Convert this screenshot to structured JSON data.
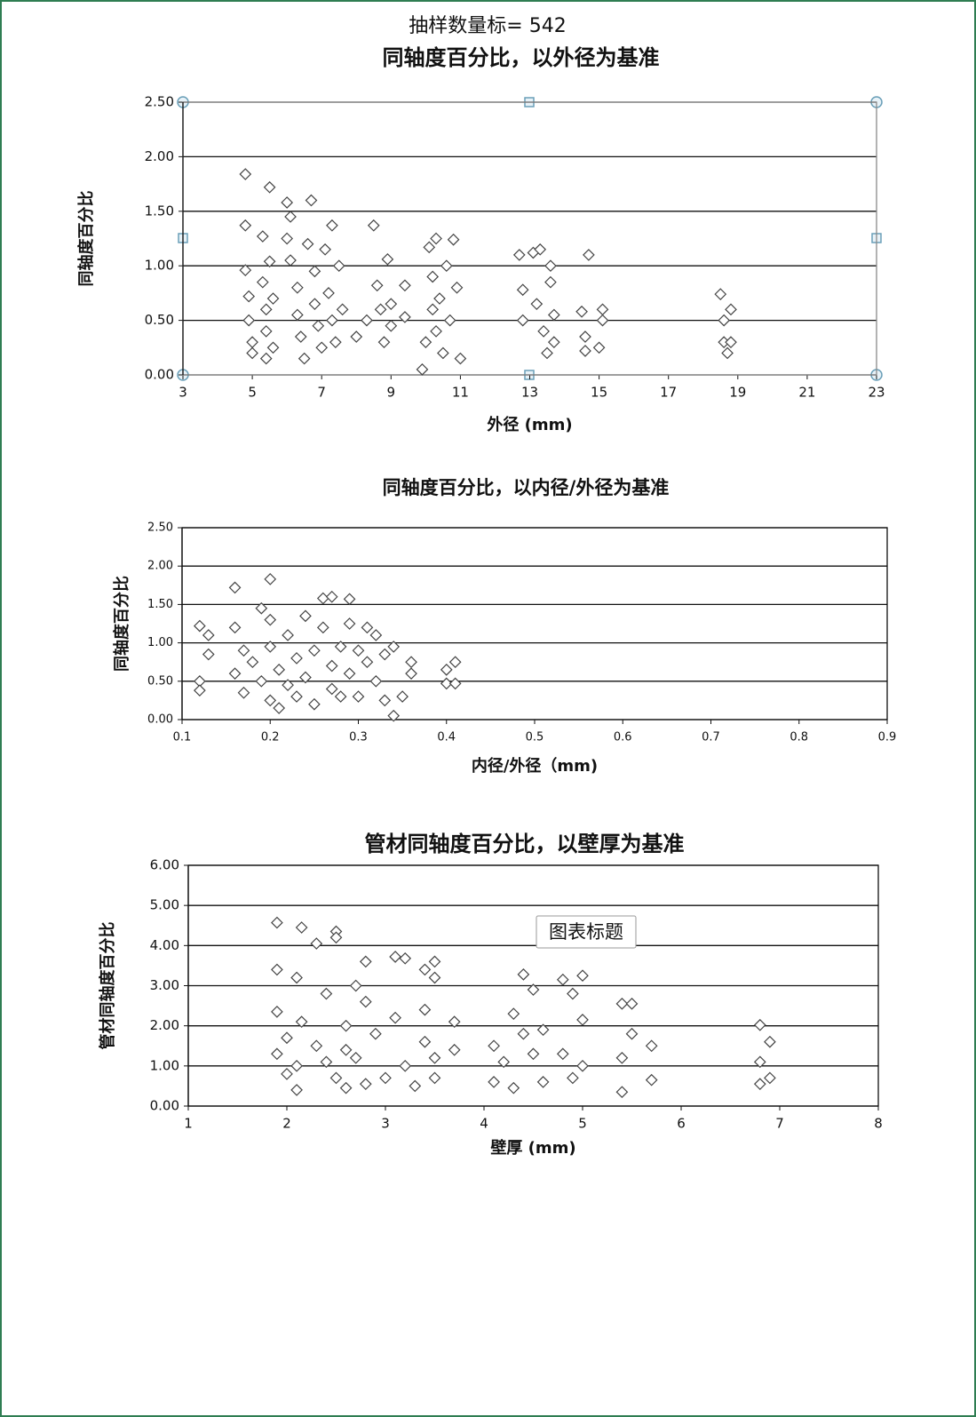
{
  "header": {
    "sample_label": "抽样数量标= 542"
  },
  "chart_data": [
    {
      "type": "scatter",
      "title": "同轴度百分比，以外径为基准",
      "x_label": "外径 (mm)",
      "y_label": "同轴度百分比",
      "color": "#444444",
      "grid": true,
      "xlim": [
        3,
        23
      ],
      "xticks": [
        3,
        5,
        7,
        9,
        11,
        13,
        15,
        17,
        19,
        21,
        23
      ],
      "ylim": [
        0,
        2.5
      ],
      "yticks": [
        {
          "value": 0,
          "label": "0.00"
        },
        {
          "value": 0.5,
          "label": "0.50"
        },
        {
          "value": 1,
          "label": "1.00"
        },
        {
          "value": 1.5,
          "label": "1.50"
        },
        {
          "value": 2,
          "label": "2.00"
        },
        {
          "value": 2.5,
          "label": "2.50"
        }
      ],
      "x": [
        4.8,
        4.8,
        4.8,
        4.9,
        4.9,
        5.0,
        5.0,
        5.3,
        5.3,
        5.4,
        5.4,
        5.4,
        5.5,
        5.5,
        5.6,
        5.6,
        6.0,
        6.1,
        6.0,
        6.1,
        6.3,
        6.3,
        6.4,
        6.5,
        6.6,
        6.7,
        6.8,
        6.8,
        6.9,
        7.0,
        7.1,
        7.2,
        7.3,
        7.3,
        7.4,
        7.5,
        7.6,
        8.0,
        8.3,
        8.5,
        8.6,
        8.7,
        8.8,
        8.9,
        9.0,
        9.0,
        9.4,
        9.4,
        9.9,
        10.0,
        10.1,
        10.2,
        10.2,
        10.3,
        10.3,
        10.4,
        10.5,
        10.6,
        10.7,
        10.8,
        10.9,
        11.0,
        12.7,
        12.8,
        12.8,
        13.1,
        13.2,
        13.3,
        13.4,
        13.5,
        13.6,
        13.6,
        13.7,
        13.7,
        14.5,
        14.6,
        14.6,
        14.7,
        15.0,
        15.1,
        15.1,
        18.5,
        18.6,
        18.6,
        18.7,
        18.8,
        18.8
      ],
      "values": [
        1.84,
        1.37,
        0.96,
        0.72,
        0.5,
        0.3,
        0.2,
        1.27,
        0.85,
        0.6,
        0.4,
        0.15,
        1.72,
        1.04,
        0.7,
        0.25,
        1.58,
        1.45,
        1.25,
        1.05,
        0.8,
        0.55,
        0.35,
        0.15,
        1.2,
        1.6,
        0.95,
        0.65,
        0.45,
        0.25,
        1.15,
        0.75,
        1.37,
        0.5,
        0.3,
        1.0,
        0.6,
        0.35,
        0.5,
        1.37,
        0.82,
        0.6,
        0.3,
        1.06,
        0.65,
        0.45,
        0.82,
        0.53,
        0.05,
        0.3,
        1.17,
        0.9,
        0.6,
        1.25,
        0.4,
        0.7,
        0.2,
        1.0,
        0.5,
        1.24,
        0.8,
        0.15,
        1.1,
        0.78,
        0.5,
        1.12,
        0.65,
        1.15,
        0.4,
        0.2,
        1.0,
        0.85,
        0.3,
        0.55,
        0.58,
        0.35,
        0.22,
        1.1,
        0.25,
        0.6,
        0.5,
        0.74,
        0.5,
        0.3,
        0.2,
        0.6,
        0.3
      ]
    },
    {
      "type": "scatter",
      "title": "同轴度百分比，以内径/外径为基准",
      "x_label": "内径/外径（mm)",
      "y_label": "同轴度百分比",
      "color": "#444444",
      "grid": true,
      "xlim": [
        0.1,
        0.9
      ],
      "xticks": [
        0.1,
        0.2,
        0.3,
        0.4,
        0.5,
        0.6,
        0.7,
        0.8,
        0.9
      ],
      "ylim": [
        0,
        2.5
      ],
      "yticks": [
        {
          "value": 0,
          "label": "0.00"
        },
        {
          "value": 0.5,
          "label": "0.50"
        },
        {
          "value": 1,
          "label": "1.00"
        },
        {
          "value": 1.5,
          "label": "1.50"
        },
        {
          "value": 2,
          "label": "2.00"
        },
        {
          "value": 2.5,
          "label": "2.50"
        }
      ],
      "x": [
        0.12,
        0.12,
        0.13,
        0.13,
        0.12,
        0.16,
        0.16,
        0.16,
        0.17,
        0.17,
        0.18,
        0.19,
        0.19,
        0.2,
        0.2,
        0.2,
        0.2,
        0.21,
        0.21,
        0.22,
        0.22,
        0.23,
        0.23,
        0.24,
        0.24,
        0.25,
        0.25,
        0.26,
        0.26,
        0.27,
        0.27,
        0.27,
        0.28,
        0.28,
        0.29,
        0.29,
        0.29,
        0.3,
        0.3,
        0.31,
        0.31,
        0.32,
        0.32,
        0.33,
        0.33,
        0.34,
        0.34,
        0.35,
        0.36,
        0.36,
        0.4,
        0.4,
        0.41,
        0.41
      ],
      "values": [
        1.22,
        0.5,
        0.85,
        1.1,
        0.38,
        1.72,
        1.2,
        0.6,
        0.9,
        0.35,
        0.75,
        1.45,
        0.5,
        1.83,
        1.3,
        0.95,
        0.25,
        0.65,
        0.15,
        1.1,
        0.45,
        0.8,
        0.3,
        1.35,
        0.55,
        0.9,
        0.2,
        1.58,
        1.2,
        0.7,
        0.4,
        1.6,
        0.95,
        0.3,
        1.57,
        1.25,
        0.6,
        0.9,
        0.3,
        1.2,
        0.75,
        1.1,
        0.5,
        0.25,
        0.85,
        0.95,
        0.05,
        0.3,
        0.6,
        0.75,
        0.65,
        0.47,
        0.75,
        0.47
      ]
    },
    {
      "type": "scatter",
      "title": "管材同轴度百分比，以壁厚为基准",
      "x_label": "壁厚 (mm)",
      "y_label": "管材同轴度百分比",
      "annotation": "图表标题",
      "color": "#444444",
      "grid": true,
      "xlim": [
        1,
        8
      ],
      "xticks": [
        1,
        2,
        3,
        4,
        5,
        6,
        7,
        8
      ],
      "ylim": [
        0,
        6
      ],
      "yticks": [
        {
          "value": 0,
          "label": "0.00"
        },
        {
          "value": 1,
          "label": "1.00"
        },
        {
          "value": 2,
          "label": "2.00"
        },
        {
          "value": 3,
          "label": "3.00"
        },
        {
          "value": 4,
          "label": "4.00"
        },
        {
          "value": 5,
          "label": "5.00"
        },
        {
          "value": 6,
          "label": "6.00"
        }
      ],
      "x": [
        1.9,
        1.9,
        1.9,
        1.9,
        2.0,
        2.0,
        2.1,
        2.1,
        2.1,
        2.15,
        2.15,
        2.3,
        2.3,
        2.4,
        2.4,
        2.5,
        2.5,
        2.5,
        2.6,
        2.6,
        2.6,
        2.7,
        2.7,
        2.8,
        2.8,
        2.8,
        2.9,
        3.0,
        3.1,
        3.1,
        3.2,
        3.2,
        3.3,
        3.4,
        3.4,
        3.4,
        3.5,
        3.5,
        3.5,
        3.5,
        3.7,
        3.7,
        4.1,
        4.1,
        4.2,
        4.3,
        4.3,
        4.4,
        4.4,
        4.5,
        4.5,
        4.6,
        4.6,
        4.8,
        4.8,
        4.9,
        4.9,
        5.0,
        5.0,
        5.0,
        5.4,
        5.4,
        5.4,
        5.5,
        5.5,
        5.7,
        5.7,
        6.8,
        6.8,
        6.9,
        6.9,
        6.8
      ],
      "values": [
        4.57,
        3.4,
        2.35,
        1.3,
        0.8,
        1.7,
        0.4,
        3.2,
        1.0,
        4.45,
        2.1,
        4.05,
        1.5,
        2.8,
        1.1,
        4.35,
        4.2,
        0.7,
        2.0,
        1.4,
        0.45,
        3.0,
        1.2,
        3.6,
        2.6,
        0.55,
        1.8,
        0.7,
        3.72,
        2.2,
        3.68,
        1.0,
        0.5,
        3.4,
        2.4,
        1.6,
        3.6,
        3.2,
        0.7,
        1.2,
        2.1,
        1.4,
        1.5,
        0.6,
        1.1,
        2.3,
        0.45,
        3.28,
        1.8,
        2.9,
        1.3,
        0.6,
        1.9,
        3.15,
        1.3,
        2.8,
        0.7,
        3.25,
        2.15,
        1.0,
        2.55,
        1.2,
        0.35,
        2.55,
        1.8,
        0.65,
        1.5,
        2.02,
        0.55,
        1.6,
        0.7,
        1.1
      ]
    }
  ]
}
